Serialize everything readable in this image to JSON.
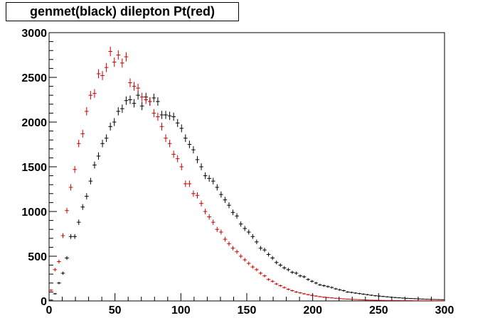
{
  "chart_data": {
    "type": "scatter",
    "title": "genmet(black) dilepton Pt(red)",
    "xlabel": "",
    "ylabel": "",
    "xlim": [
      0,
      300
    ],
    "ylim": [
      0,
      3000
    ],
    "x_ticks": [
      0,
      50,
      100,
      150,
      200,
      250,
      300
    ],
    "y_ticks": [
      0,
      500,
      1000,
      1500,
      2000,
      2500,
      3000
    ],
    "x_tick_labels": [
      "0",
      "50",
      "100",
      "150",
      "200",
      "250",
      "300"
    ],
    "y_tick_labels": [
      "0",
      "500",
      "1000",
      "1500",
      "2000",
      "2500",
      "3000"
    ],
    "bin_width": 3,
    "grid": false,
    "colors": {
      "black_series": "#000000",
      "red_series": "#cc0000"
    },
    "series": [
      {
        "color": "#000000",
        "values": [
          10,
          80,
          200,
          310,
          480,
          720,
          720,
          880,
          1050,
          1170,
          1340,
          1520,
          1620,
          1760,
          1820,
          1950,
          2000,
          2120,
          2150,
          2240,
          2250,
          2210,
          2300,
          2180,
          2280,
          2230,
          2270,
          2230,
          2080,
          2080,
          2070,
          2060,
          1990,
          1930,
          1820,
          1750,
          1690,
          1580,
          1500,
          1400,
          1370,
          1340,
          1270,
          1190,
          1130,
          1070,
          990,
          950,
          860,
          810,
          770,
          720,
          660,
          590,
          570,
          520,
          480,
          430,
          400,
          370,
          350,
          320,
          310,
          280,
          270,
          240,
          220,
          200,
          180,
          170,
          160,
          150,
          135,
          125,
          115,
          100,
          95,
          88,
          82,
          76,
          70,
          64,
          58,
          54,
          50,
          46,
          42,
          38,
          35,
          32,
          29,
          27,
          25,
          23,
          21,
          19,
          18,
          16,
          15,
          14
        ]
      },
      {
        "color": "#cc0000",
        "values": [
          120,
          350,
          440,
          730,
          1010,
          1270,
          1470,
          1760,
          1870,
          2120,
          2300,
          2320,
          2540,
          2520,
          2610,
          2790,
          2670,
          2750,
          2660,
          2730,
          2440,
          2400,
          2380,
          2280,
          2250,
          2230,
          2100,
          2060,
          1950,
          1820,
          1760,
          1640,
          1590,
          1500,
          1310,
          1310,
          1200,
          1180,
          1090,
          1000,
          940,
          880,
          800,
          770,
          690,
          640,
          590,
          550,
          500,
          460,
          420,
          380,
          350,
          310,
          280,
          240,
          220,
          190,
          170,
          150,
          130,
          115,
          100,
          90,
          80,
          70,
          62,
          55,
          48,
          42,
          38,
          34,
          30,
          26,
          23,
          20,
          18,
          16,
          14,
          12,
          10,
          9,
          8,
          7,
          6,
          5,
          5,
          4,
          4,
          3,
          3,
          3,
          2,
          2,
          2,
          2,
          2,
          1,
          1,
          1
        ]
      }
    ]
  }
}
